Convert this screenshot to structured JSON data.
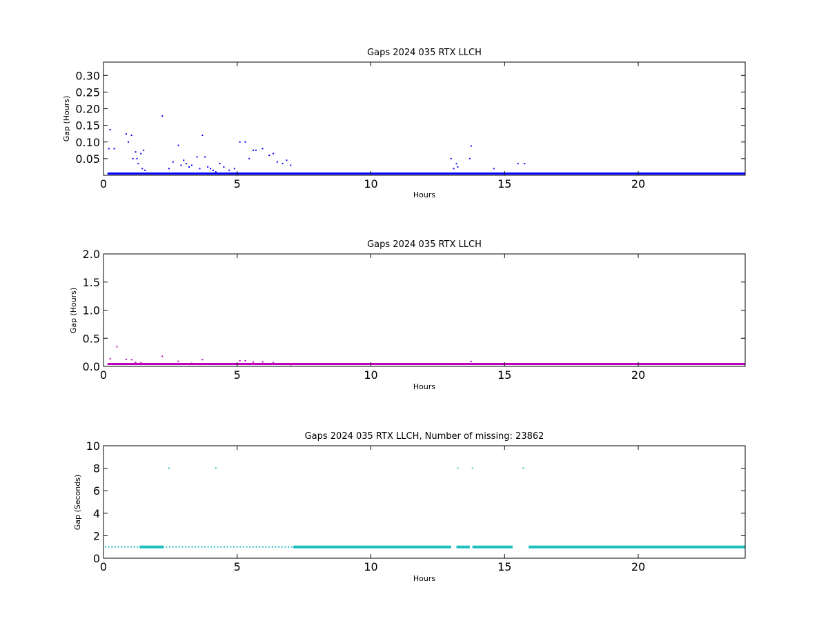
{
  "chart_data": [
    {
      "type": "scatter",
      "title": "Gaps 2024 035 RTX  LLCH",
      "xlabel": "Hours",
      "ylabel": "Gap (Hours)",
      "xlim": [
        0,
        24
      ],
      "ylim": [
        0,
        0.34
      ],
      "xticks": [
        0,
        5,
        10,
        15,
        20
      ],
      "xtick_labels": [
        "0",
        "5",
        "10",
        "15",
        "20"
      ],
      "yticks": [
        0.05,
        0.1,
        0.15,
        0.2,
        0.25,
        0.3
      ],
      "ytick_labels": [
        "0.05",
        "0.10",
        "0.15",
        "0.20",
        "0.25",
        "0.30"
      ],
      "color": "#0000ff",
      "grid": false,
      "series": [
        {
          "x": [
            0.25,
            0.2,
            0.4,
            0.85,
            0.93,
            1.05,
            1.1,
            1.2,
            1.25,
            1.3,
            1.4,
            1.45,
            1.5,
            1.55,
            2.2,
            2.45,
            2.6,
            2.8,
            2.9,
            3.0,
            3.1,
            3.2,
            3.3,
            3.5,
            3.6,
            3.7,
            3.8,
            3.9,
            4.0,
            4.1,
            4.2,
            4.35,
            4.5,
            4.7,
            4.9,
            5.1,
            5.3,
            5.45,
            5.6,
            5.7,
            5.95,
            6.2,
            6.35,
            6.5,
            6.7,
            6.85,
            7.0,
            13.0,
            13.1,
            13.2,
            13.25,
            13.7,
            13.75,
            14.6,
            15.5,
            15.75
          ],
          "y": [
            0.137,
            0.08,
            0.08,
            0.124,
            0.1,
            0.12,
            0.05,
            0.07,
            0.05,
            0.035,
            0.065,
            0.02,
            0.075,
            0.015,
            0.178,
            0.02,
            0.04,
            0.09,
            0.03,
            0.045,
            0.035,
            0.025,
            0.03,
            0.055,
            0.02,
            0.12,
            0.055,
            0.025,
            0.02,
            0.015,
            0.01,
            0.035,
            0.025,
            0.015,
            0.02,
            0.1,
            0.1,
            0.05,
            0.075,
            0.075,
            0.08,
            0.06,
            0.065,
            0.04,
            0.035,
            0.045,
            0.03,
            0.05,
            0.02,
            0.035,
            0.025,
            0.05,
            0.088,
            0.02,
            0.035,
            0.035
          ]
        }
      ]
    },
    {
      "type": "scatter",
      "title": "Gaps 2024 035 RTX  LLCH",
      "xlabel": "Hours",
      "ylabel": "Gap (Hours)",
      "xlim": [
        0,
        24
      ],
      "ylim": [
        0,
        2.0
      ],
      "xticks": [
        0,
        5,
        10,
        15,
        20
      ],
      "xtick_labels": [
        "0",
        "5",
        "10",
        "15",
        "20"
      ],
      "yticks": [
        0,
        0.5,
        1.0,
        1.5,
        2.0
      ],
      "ytick_labels": [
        "0.0",
        "0.5",
        "1.0",
        "1.5",
        "2.0"
      ],
      "color": "#bf00bf",
      "grid": false,
      "series": [
        {
          "x": [
            0.25,
            0.5,
            0.85,
            1.05,
            1.2,
            1.4,
            2.2,
            2.8,
            3.3,
            3.7,
            4.2,
            5.1,
            5.3,
            5.6,
            5.95,
            6.35,
            7.0,
            13.0,
            13.2,
            13.75
          ],
          "y": [
            0.137,
            0.35,
            0.124,
            0.12,
            0.07,
            0.065,
            0.178,
            0.09,
            0.055,
            0.12,
            0.05,
            0.1,
            0.1,
            0.075,
            0.08,
            0.065,
            0.03,
            0.05,
            0.035,
            0.088
          ]
        }
      ]
    },
    {
      "type": "scatter",
      "title": "Gaps 2024 035 RTX  LLCH, Number of missing: 23862",
      "xlabel": "Hours",
      "ylabel": "Gap (Seconds)",
      "xlim": [
        0,
        24
      ],
      "ylim": [
        0,
        10
      ],
      "xticks": [
        0,
        5,
        10,
        15,
        20
      ],
      "xtick_labels": [
        "0",
        "5",
        "10",
        "15",
        "20"
      ],
      "yticks": [
        0,
        2,
        4,
        6,
        8,
        10
      ],
      "ytick_labels": [
        "0",
        "2",
        "4",
        "6",
        "8",
        "10"
      ],
      "color": "#1fbfbf",
      "grid": false,
      "series": [
        {
          "x": [
            2.45,
            4.2,
            13.25,
            13.8,
            15.7
          ],
          "y": [
            8,
            8,
            8,
            8,
            8
          ]
        }
      ],
      "baseline_value": 1
    }
  ]
}
